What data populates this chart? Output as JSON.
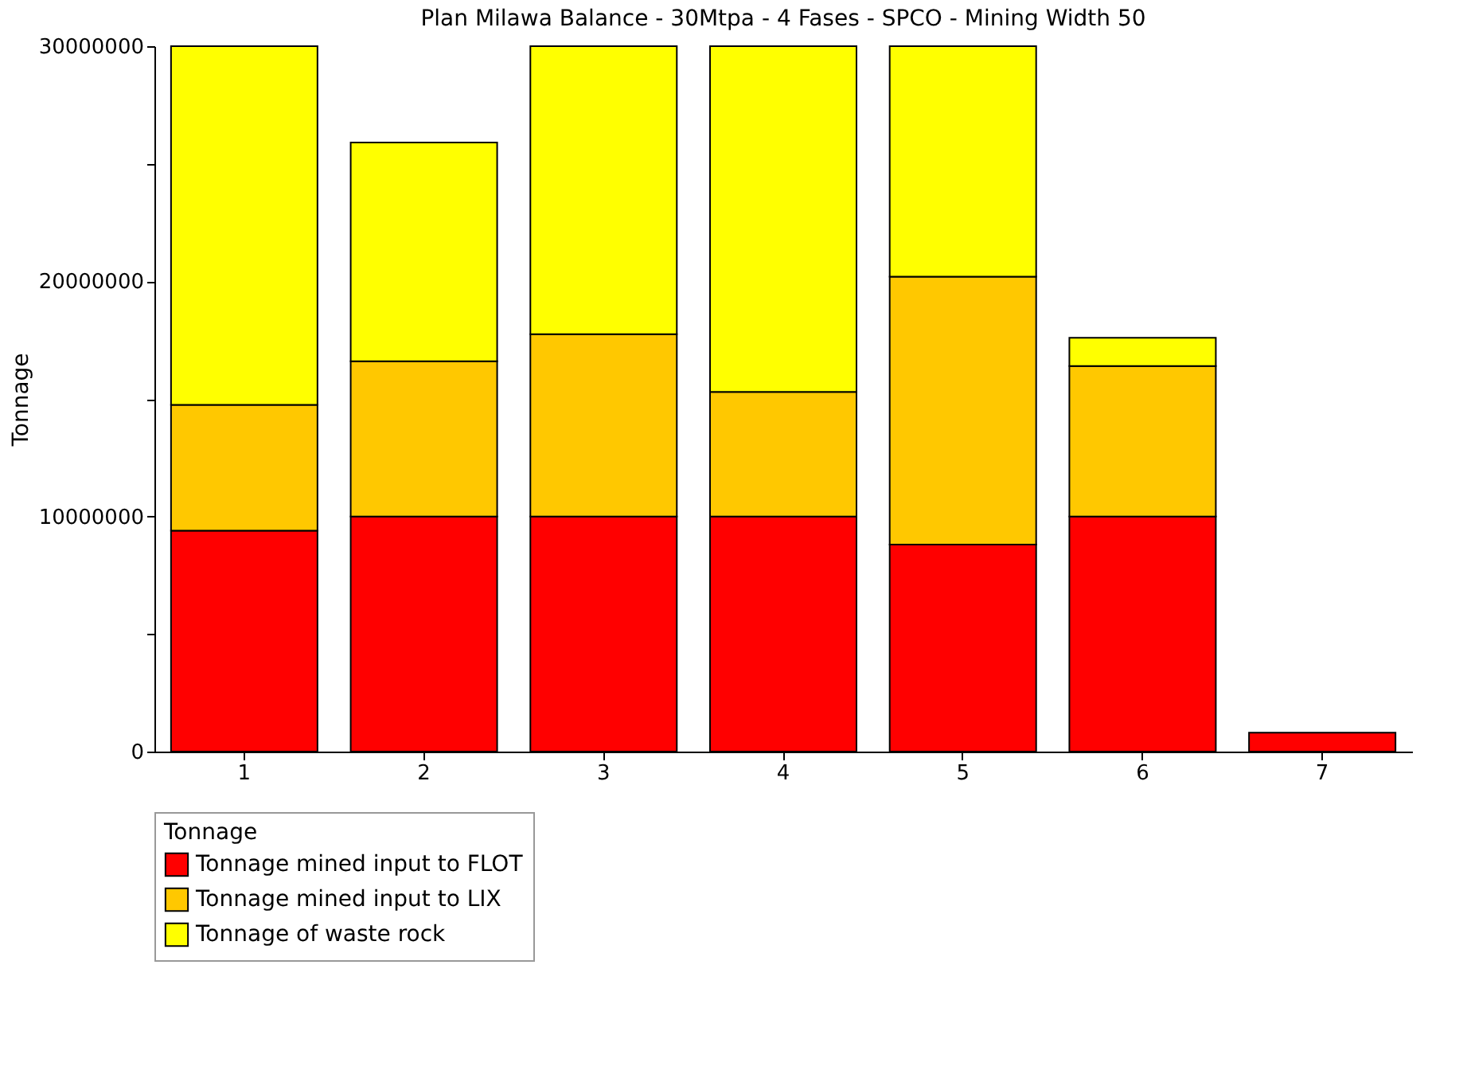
{
  "chart_data": {
    "type": "bar",
    "title": "Plan Milawa Balance - 30Mtpa - 4 Fases - SPCO - Mining Width 50",
    "categories": [
      "1",
      "2",
      "3",
      "4",
      "5",
      "6",
      "7"
    ],
    "series": [
      {
        "name": "Tonnage mined input to FLOT",
        "color": "#ff0000",
        "values": [
          9400000,
          10000000,
          10000000,
          10000000,
          8800000,
          10000000,
          800000
        ]
      },
      {
        "name": "Tonnage mined input to LIX",
        "color": "#ffc800",
        "values": [
          5350000,
          6600000,
          7750000,
          5300000,
          11400000,
          6400000,
          null
        ]
      },
      {
        "name": "Tonnage of waste rock",
        "color": "#ffff00",
        "values": [
          15250000,
          9300000,
          12250000,
          14700000,
          9800000,
          1200000,
          null
        ]
      }
    ],
    "stacked": true,
    "ylabel": "Tonnage",
    "legend_title": "Tonnage",
    "legend": "bottom",
    "grid": false,
    "ylim": [
      0,
      30000000
    ],
    "yticks": [
      0,
      {
        "value": 5000000,
        "label": null
      },
      10000000,
      {
        "value": 15000000,
        "label": null
      },
      20000000,
      {
        "value": 25000000,
        "label": null
      },
      30000000
    ]
  }
}
